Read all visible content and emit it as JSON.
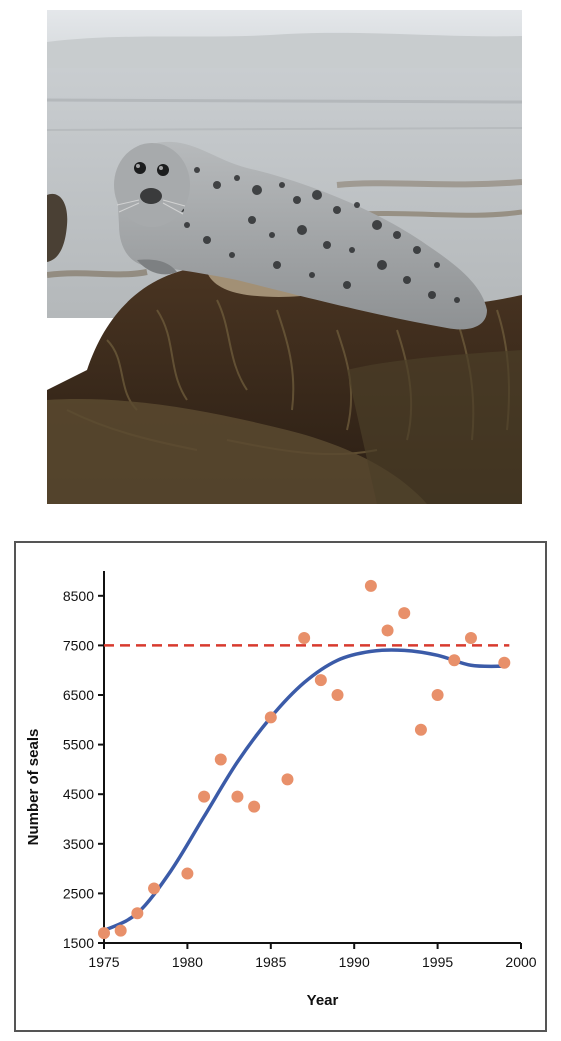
{
  "photo": {
    "subject": "harbor seal resting on seaweed-covered rock",
    "colors": {
      "sky": "#d9dde0",
      "water": "#c3c8cb",
      "seal_body": "#a9acae",
      "seal_spots": "#2f3133",
      "rock_dark": "#3b2a1c",
      "seaweed": "#6b5a3a"
    }
  },
  "chart_data": {
    "type": "scatter",
    "xlabel": "Year",
    "ylabel": "Number of seals",
    "xlim": [
      1975,
      2000
    ],
    "ylim": [
      1500,
      9000
    ],
    "x_ticks": [
      1975,
      1980,
      1985,
      1990,
      1995,
      2000
    ],
    "y_ticks": [
      1500,
      2500,
      3500,
      4500,
      5500,
      6500,
      7500,
      8500
    ],
    "points": [
      {
        "x": 1975,
        "y": 1700
      },
      {
        "x": 1976,
        "y": 1750
      },
      {
        "x": 1977,
        "y": 2100
      },
      {
        "x": 1978,
        "y": 2600
      },
      {
        "x": 1980,
        "y": 2900
      },
      {
        "x": 1981,
        "y": 4450
      },
      {
        "x": 1982,
        "y": 5200
      },
      {
        "x": 1983,
        "y": 4450
      },
      {
        "x": 1984,
        "y": 4250
      },
      {
        "x": 1985,
        "y": 6050
      },
      {
        "x": 1986,
        "y": 4800
      },
      {
        "x": 1987,
        "y": 7650
      },
      {
        "x": 1988,
        "y": 6800
      },
      {
        "x": 1989,
        "y": 6500
      },
      {
        "x": 1991,
        "y": 8700
      },
      {
        "x": 1992,
        "y": 7800
      },
      {
        "x": 1993,
        "y": 8150
      },
      {
        "x": 1994,
        "y": 5800
      },
      {
        "x": 1995,
        "y": 6500
      },
      {
        "x": 1996,
        "y": 7200
      },
      {
        "x": 1997,
        "y": 7650
      },
      {
        "x": 1999,
        "y": 7150
      }
    ],
    "fitted_curve": [
      {
        "x": 1975,
        "y": 1750
      },
      {
        "x": 1977,
        "y": 2100
      },
      {
        "x": 1979,
        "y": 2950
      },
      {
        "x": 1981,
        "y": 4050
      },
      {
        "x": 1983,
        "y": 5150
      },
      {
        "x": 1985,
        "y": 6050
      },
      {
        "x": 1987,
        "y": 6750
      },
      {
        "x": 1989,
        "y": 7200
      },
      {
        "x": 1991,
        "y": 7380
      },
      {
        "x": 1993,
        "y": 7400
      },
      {
        "x": 1995,
        "y": 7300
      },
      {
        "x": 1997,
        "y": 7100
      },
      {
        "x": 1999,
        "y": 7080
      }
    ],
    "carrying_capacity": 7500,
    "colors": {
      "points": "#e8906a",
      "curve": "#3b5ba8",
      "capacity_line": "#d83a2e",
      "axis": "#111111",
      "frame": "#555555"
    },
    "grid": false
  }
}
